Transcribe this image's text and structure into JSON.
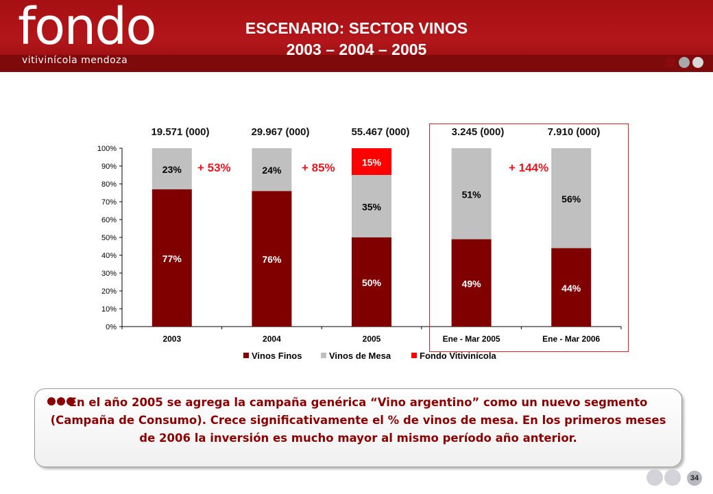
{
  "header": {
    "logo_main": "fondo",
    "logo_sub": "vitivinícola mendoza",
    "title_line1": "ESCENARIO: SECTOR VINOS",
    "title_line2": "2003 – 2004 – 2005",
    "dot_colors": [
      "#8a0b0e",
      "#a8a8a8",
      "#d8d8d8"
    ]
  },
  "chart_data": {
    "type": "bar",
    "stacked": true,
    "categories": [
      "2003",
      "2004",
      "2005",
      "Ene - Mar 2005",
      "Ene - Mar 2006"
    ],
    "series": [
      {
        "name": "Vinos Finos",
        "color": "#800000",
        "values": [
          77,
          76,
          50,
          49,
          44
        ],
        "labels": [
          "77%",
          "76%",
          "50%",
          "49%",
          "44%"
        ]
      },
      {
        "name": "Vinos de Mesa",
        "color": "#c0c0c0",
        "values": [
          23,
          24,
          35,
          51,
          56
        ],
        "labels": [
          "23%",
          "24%",
          "35%",
          "51%",
          "56%"
        ]
      },
      {
        "name": "Fondo Vitivinícola",
        "color": "#ff0000",
        "values": [
          0,
          0,
          15,
          0,
          0
        ],
        "labels": [
          "",
          "",
          "15%",
          "",
          ""
        ]
      }
    ],
    "ylim": [
      0,
      100
    ],
    "yticks": [
      "0%",
      "10%",
      "20%",
      "30%",
      "40%",
      "50%",
      "60%",
      "70%",
      "80%",
      "90%",
      "100%"
    ],
    "totals": [
      "19.571 (000)",
      "29.967 (000)",
      "55.467 (000)",
      "3.245 (000)",
      "7.910 (000)"
    ],
    "growth_labels": [
      "+ 53%",
      "+ 85%",
      "+ 144%"
    ],
    "legend_position": "bottom",
    "grid": false
  },
  "note": {
    "text": "En el año 2005 se agrega la campaña genérica “Vino argentino” como un nuevo segmento (Campaña de Consumo). Crece significativamente el % de vinos de mesa. En los primeros meses de 2006 la inversión es mucho mayor al mismo período año anterior."
  },
  "footer": {
    "page_number": "34"
  }
}
